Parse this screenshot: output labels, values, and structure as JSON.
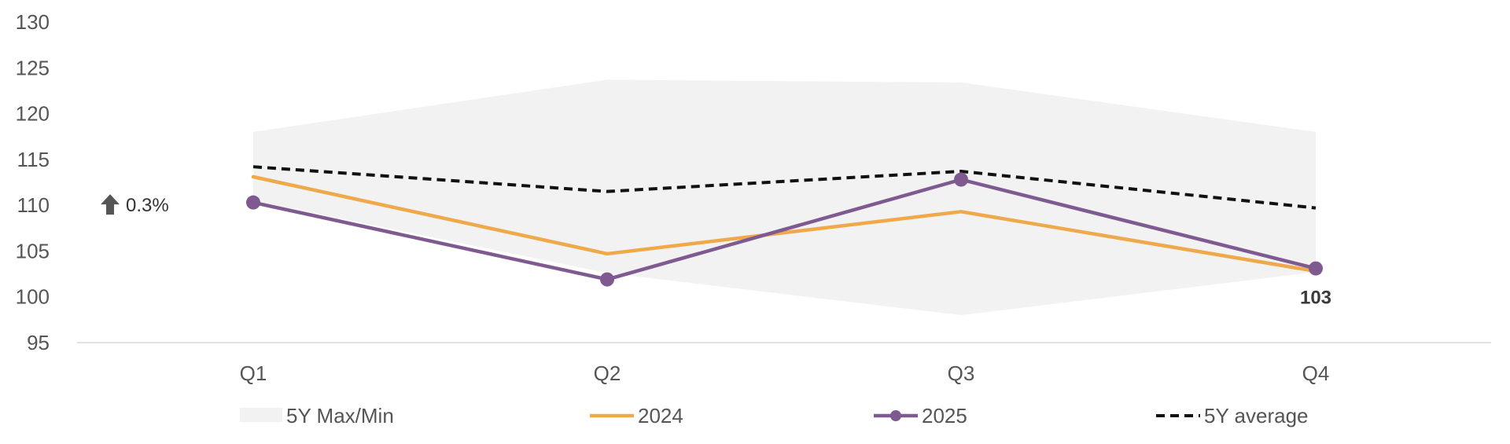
{
  "chart_data": {
    "type": "line",
    "categories": [
      "Q1",
      "Q2",
      "Q3",
      "Q4"
    ],
    "ylim": [
      95,
      130
    ],
    "yticks": [
      95,
      100,
      105,
      110,
      115,
      120,
      125,
      130
    ],
    "grid": false,
    "legend_position": "bottom",
    "band": {
      "name": "5Y Max/Min",
      "max": [
        118,
        123.7,
        123.4,
        118
      ],
      "min": [
        110.5,
        102.6,
        98,
        102.7
      ],
      "color": "#f2f2f2"
    },
    "series": [
      {
        "name": "2024",
        "values": [
          113.1,
          104.7,
          109.3,
          102.8
        ],
        "color": "#f0a94a",
        "style": "solid"
      },
      {
        "name": "2025",
        "values": [
          110.3,
          101.9,
          112.8,
          103.1
        ],
        "color": "#7e5a91",
        "style": "solid-markers"
      },
      {
        "name": "5Y average",
        "values": [
          114.2,
          111.5,
          113.7,
          109.7
        ],
        "color": "#111111",
        "style": "dashed"
      }
    ],
    "annotations": {
      "change_text": "0.3%",
      "change_direction": "up",
      "last_value_label": "103"
    }
  }
}
